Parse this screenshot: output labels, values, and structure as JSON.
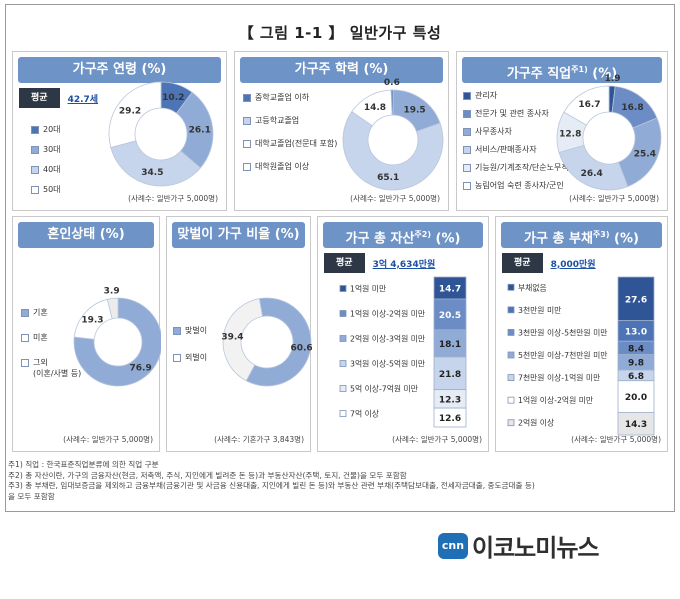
{
  "figure_title": "【 그림 1-1 】 일반가구 특성",
  "colors": {
    "d1": "#4d74b5",
    "d2": "#90acd6",
    "d3": "#c6d5ec",
    "d4": "#ffffff",
    "head": "#6e93c6"
  },
  "panels": {
    "age": {
      "title": "가구주 연령 (%)",
      "avg_label": "평균",
      "avg_value": "42.7세",
      "note": "(사례수: 일반가구 5,000명)",
      "chart_data": {
        "type": "pie",
        "categories": [
          "20대",
          "30대",
          "40대",
          "50대"
        ],
        "values": [
          10.2,
          26.1,
          34.5,
          29.2
        ],
        "labels": [
          "10.2",
          "26.1",
          "34.5",
          "29.2"
        ]
      }
    },
    "edu": {
      "title": "가구주 학력 (%)",
      "note": "(사례수: 일반가구 5,000명)",
      "chart_data": {
        "type": "pie",
        "categories": [
          "중학교졸업 이하",
          "고등학교졸업",
          "대학교졸업(전문대 포함)",
          "대학원졸업 이상"
        ],
        "values": [
          19.5,
          65.1,
          14.8,
          0.6
        ],
        "labels": [
          "19.5",
          "65.1",
          "14.8",
          "0.6"
        ]
      }
    },
    "job": {
      "title": "가구주 직업",
      "title_sup": "주1)",
      "title_unit": "(%)",
      "note": "(사례수: 일반가구 5,000명)",
      "chart_data": {
        "type": "pie",
        "categories": [
          "관리자",
          "전문가 및 관련 종사자",
          "사무종사자",
          "서비스/판매종사자",
          "기능원/기계조작/단순노무직",
          "농림어업 숙련 종사자/군인"
        ],
        "values": [
          1.9,
          16.8,
          25.4,
          26.4,
          12.8,
          16.7
        ],
        "labels": [
          "1.9",
          "16.8",
          "25.4",
          "26.4",
          "12.8",
          "16.7"
        ]
      }
    },
    "marriage": {
      "title": "혼인상태 (%)",
      "legend_third_line2": "(이혼/사별 등)",
      "note": "(사례수: 일반가구 5,000명)",
      "chart_data": {
        "type": "pie",
        "categories": [
          "기혼",
          "미혼",
          "그외"
        ],
        "values": [
          76.9,
          19.3,
          3.9
        ],
        "labels": [
          "76.9",
          "19.3",
          "3.9"
        ]
      }
    },
    "dual": {
      "title": "맞벌이 가구 비율 (%)",
      "note": "(사례수: 기혼가구 3,843명)",
      "chart_data": {
        "type": "pie",
        "categories": [
          "맞벌이",
          "외벌이"
        ],
        "values": [
          60.6,
          39.4
        ],
        "labels": [
          "60.6",
          "39.4"
        ]
      }
    },
    "assets": {
      "title": "가구 총 자산",
      "title_sup": "주2)",
      "title_unit": "(%)",
      "avg_label": "평균",
      "avg_value": "3억 4,634만원",
      "note": "(사례수: 일반가구 5,000명)",
      "chart_data": {
        "type": "bar",
        "categories": [
          "1억원 미만",
          "1억원 이상-2억원 미만",
          "2억원 이상-3억원 미만",
          "3억원 이상-5억원 미만",
          "5억 이상-7억원 미만",
          "7억 이상"
        ],
        "values": [
          14.7,
          20.5,
          18.1,
          21.8,
          12.3,
          12.6
        ],
        "labels": [
          "14.7",
          "20.5",
          "18.1",
          "21.8",
          "12.3",
          "12.6"
        ]
      }
    },
    "debt": {
      "title": "가구 총 부채",
      "title_sup": "주3)",
      "title_unit": "(%)",
      "avg_label": "평균",
      "avg_value": "8,000만원",
      "note": "(사례수: 일반가구 5,000명)",
      "chart_data": {
        "type": "bar",
        "categories": [
          "부채없음",
          "3천만원 미만",
          "3천만원 이상-5천만원 미만",
          "5천만원 이상-7천만원 미만",
          "7천만원 이상-1억원 미만",
          "1억원 이상-2억원 미만",
          "2억원 이상"
        ],
        "values": [
          27.6,
          13.0,
          8.4,
          9.8,
          6.8,
          20.0,
          14.3
        ],
        "labels": [
          "27.6",
          "13.0",
          "8.4",
          "9.8",
          "6.8",
          "20.0",
          "14.3"
        ]
      }
    }
  },
  "footnotes": [
    "주1) 직업 : 한국표준직업분류에 의한 직업 구분",
    "주2) 총 자산이란, 가구의 금융자산(현금, 저축액, 주식, 지인에게 빌려준 돈 등)과 부동산자산(주택, 토지, 건물)을 모두 포함함",
    "주3) 총 부채란, 임대보증금을 제외하고 금융부채(금융기관 및 사금융 신용대출, 지인에게 빌린 돈 등)와 부동산 관련 부채(주택담보대출, 전세자금대출, 중도금대출 등)",
    "을 모두 포함함"
  ],
  "logo": {
    "mark": "cnn",
    "text": "이코노미뉴스"
  }
}
